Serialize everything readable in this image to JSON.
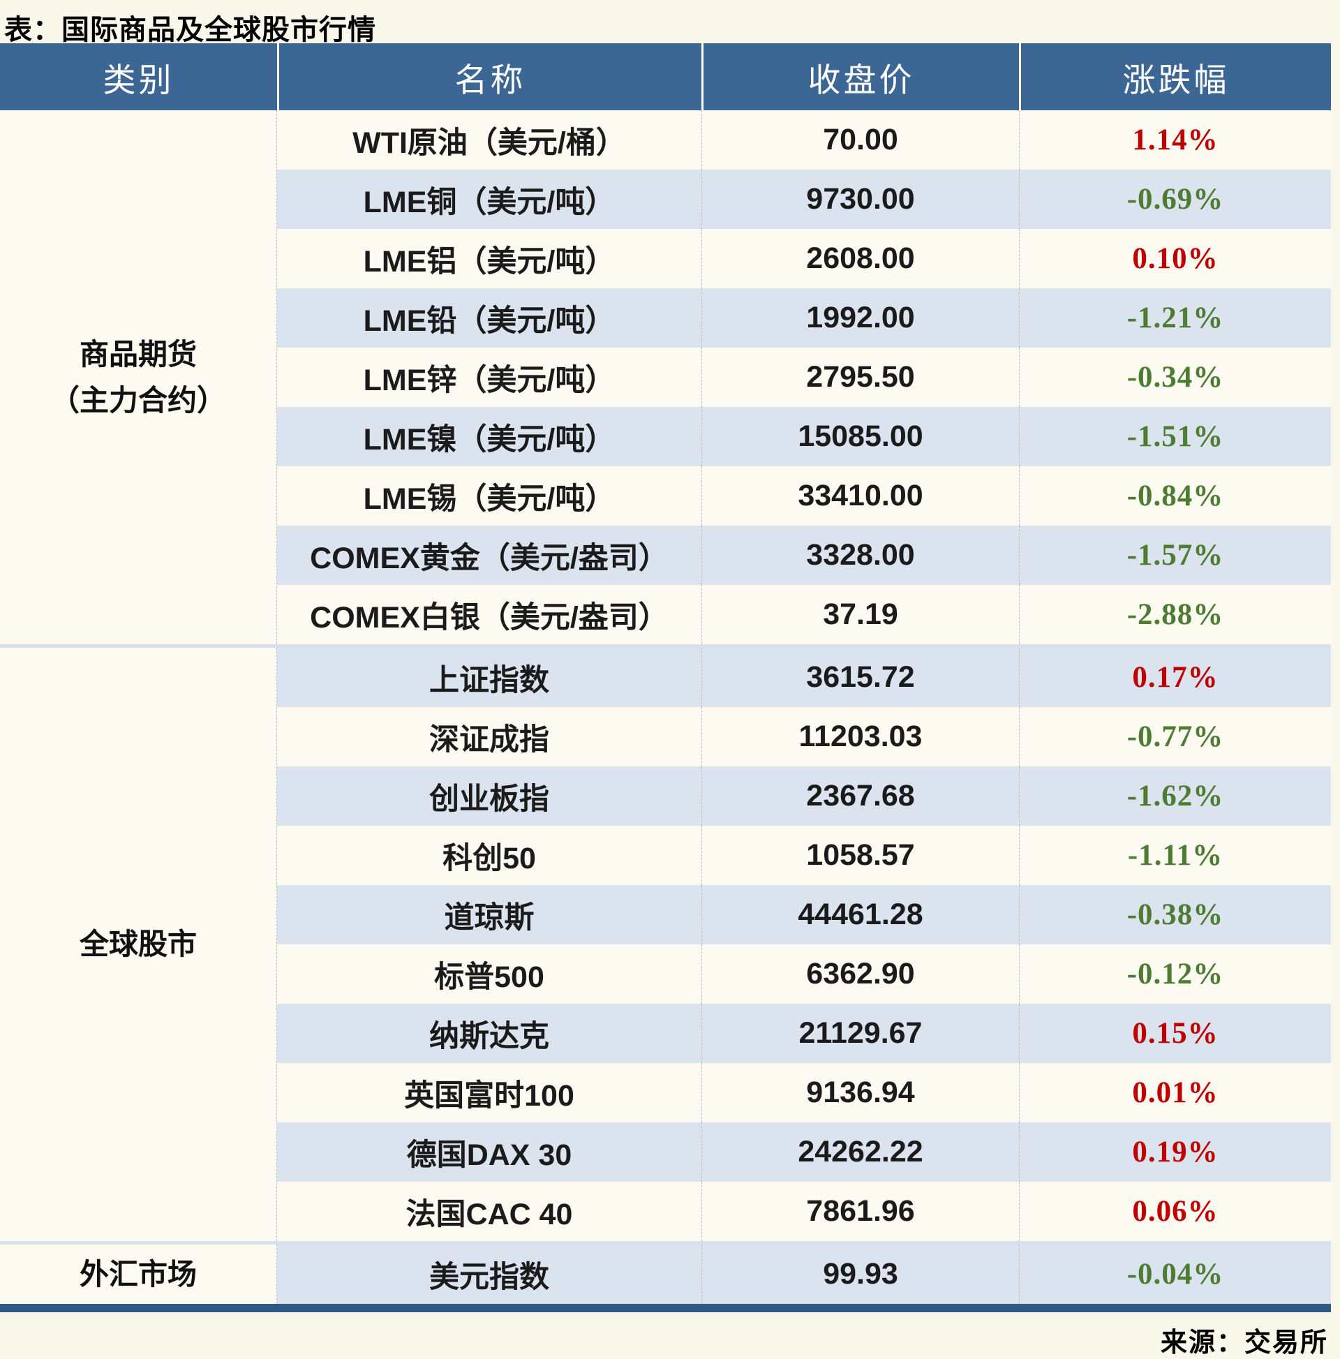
{
  "title": "表：国际商品及全球股市行情",
  "source": "来源：交易所",
  "colors": {
    "header_bg": "#3c6795",
    "stripe_blue": "#dbe3ef",
    "stripe_cream": "#fcfaf1",
    "up_red": "#c00000",
    "down_green": "#4d7c32",
    "bottom_bar": "#2e5b85",
    "page_bg": "#faf7eb"
  },
  "table": {
    "headers": [
      "类别",
      "名称",
      "收盘价",
      "涨跌幅"
    ],
    "sections": [
      {
        "category_lines": [
          "商品期货",
          "（主力合约）"
        ],
        "rows": [
          {
            "name": "WTI原油（美元/桶）",
            "close": "70.00",
            "change": "1.14%",
            "dir": "up"
          },
          {
            "name": "LME铜（美元/吨）",
            "close": "9730.00",
            "change": "-0.69%",
            "dir": "down"
          },
          {
            "name": "LME铝（美元/吨）",
            "close": "2608.00",
            "change": "0.10%",
            "dir": "up"
          },
          {
            "name": "LME铅（美元/吨）",
            "close": "1992.00",
            "change": "-1.21%",
            "dir": "down"
          },
          {
            "name": "LME锌（美元/吨）",
            "close": "2795.50",
            "change": "-0.34%",
            "dir": "down"
          },
          {
            "name": "LME镍（美元/吨）",
            "close": "15085.00",
            "change": "-1.51%",
            "dir": "down"
          },
          {
            "name": "LME锡（美元/吨）",
            "close": "33410.00",
            "change": "-0.84%",
            "dir": "down"
          },
          {
            "name": "COMEX黄金（美元/盎司）",
            "close": "3328.00",
            "change": "-1.57%",
            "dir": "down"
          },
          {
            "name": "COMEX白银（美元/盎司）",
            "close": "37.19",
            "change": "-2.88%",
            "dir": "down"
          }
        ]
      },
      {
        "category_lines": [
          "全球股市"
        ],
        "rows": [
          {
            "name": "上证指数",
            "close": "3615.72",
            "change": "0.17%",
            "dir": "up"
          },
          {
            "name": "深证成指",
            "close": "11203.03",
            "change": "-0.77%",
            "dir": "down"
          },
          {
            "name": "创业板指",
            "close": "2367.68",
            "change": "-1.62%",
            "dir": "down"
          },
          {
            "name": "科创50",
            "close": "1058.57",
            "change": "-1.11%",
            "dir": "down"
          },
          {
            "name": "道琼斯",
            "close": "44461.28",
            "change": "-0.38%",
            "dir": "down"
          },
          {
            "name": "标普500",
            "close": "6362.90",
            "change": "-0.12%",
            "dir": "down"
          },
          {
            "name": "纳斯达克",
            "close": "21129.67",
            "change": "0.15%",
            "dir": "up"
          },
          {
            "name": "英国富时100",
            "close": "9136.94",
            "change": "0.01%",
            "dir": "up"
          },
          {
            "name": "德国DAX 30",
            "close": "24262.22",
            "change": "0.19%",
            "dir": "up"
          },
          {
            "name": "法国CAC 40",
            "close": "7861.96",
            "change": "0.06%",
            "dir": "up"
          }
        ]
      },
      {
        "category_lines": [
          "外汇市场"
        ],
        "rows": [
          {
            "name": "美元指数",
            "close": "99.93",
            "change": "-0.04%",
            "dir": "down"
          }
        ]
      }
    ]
  }
}
